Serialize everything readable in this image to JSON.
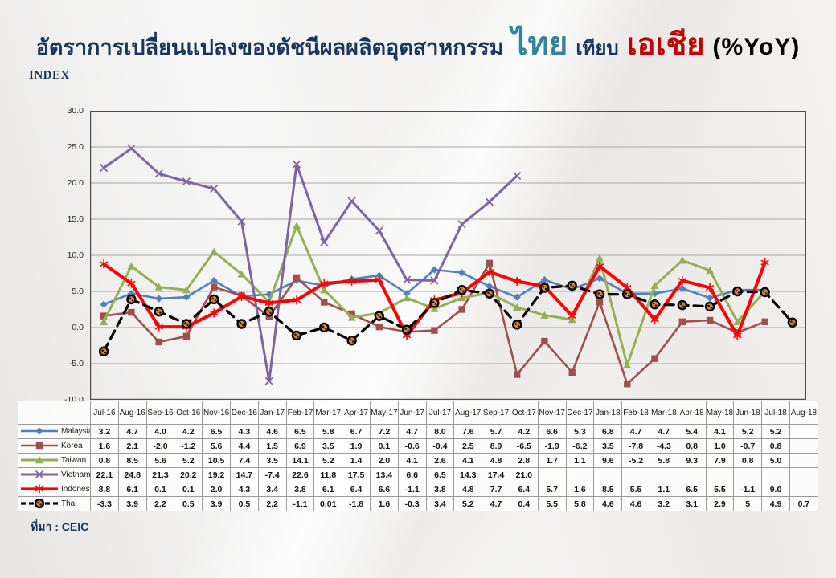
{
  "title": {
    "part1": "อัตราการเปลี่ยนแปลงของดัชนีผลผลิตอุตสาหกรรม",
    "thai_word": "ไทย",
    "part2": "เทียบ",
    "asia_word": "เอเชีย",
    "part3": "(%YoY)"
  },
  "axis_label": "INDEX",
  "source": "ที่มา : CEIC",
  "colors": {
    "title_main": "#17375E",
    "title_thai": "#31859C",
    "title_asia": "#C00000",
    "gridline": "#a6a6a6",
    "plot_border": "#4d4d4d",
    "malaysia": "#4F81BD",
    "korea": "#A0504C",
    "taiwan": "#94B054",
    "vietnam": "#8064A2",
    "indonesia": "#FF0000",
    "thai": "#000000",
    "thai_marker_fill": "#D18439"
  },
  "chart_data": {
    "type": "line",
    "title": "อัตราการเปลี่ยนแปลงของดัชนีผลผลิตอุตสาหกรรม ไทย เทียบ เอเชีย (%YoY)",
    "ylabel": "INDEX",
    "ylim": [
      -10,
      30
    ],
    "ytick_step": 5,
    "yticks": [
      "30.0",
      "25.0",
      "20.0",
      "15.0",
      "10.0",
      "5.0",
      "0.0",
      "-5.0",
      "-10.0"
    ],
    "grid": "horizontal-only",
    "legend_position": "table-left-column",
    "categories": [
      "Jul-16",
      "Aug-16",
      "Sep-16",
      "Oct-16",
      "Nov-16",
      "Dec-16",
      "Jan-17",
      "Feb-17",
      "Mar-17",
      "Apr-17",
      "May-17",
      "Jun-17",
      "Jul-17",
      "Aug-17",
      "Sep-17",
      "Oct-17",
      "Nov-17",
      "Dec-17",
      "Jan-18",
      "Feb-18",
      "Mar-18",
      "Apr-18",
      "May-18",
      "Jun-18",
      "Jul-18",
      "Aug-18"
    ],
    "series": [
      {
        "name": "Malaysia",
        "color": "#4F81BD",
        "marker": "diamond",
        "dash": "",
        "line_width": 2.6,
        "values": [
          "3.2",
          "4.7",
          "4.0",
          "4.2",
          "6.5",
          "4.3",
          "4.6",
          "6.5",
          "5.8",
          "6.7",
          "7.2",
          "4.7",
          "8.0",
          "7.6",
          "5.7",
          "4.2",
          "6.6",
          "5.3",
          "6.8",
          "4.7",
          "4.7",
          "5.4",
          "4.1",
          "5.2",
          "5.2",
          ""
        ]
      },
      {
        "name": "Korea",
        "color": "#A0504C",
        "marker": "square",
        "dash": "",
        "line_width": 2.6,
        "values": [
          "1.6",
          "2.1",
          "-2.0",
          "-1.2",
          "5.6",
          "4.4",
          "1.5",
          "6.9",
          "3.5",
          "1.9",
          "0.1",
          "-0.6",
          "-0.4",
          "2.5",
          "8.9",
          "-6.5",
          "-1.9",
          "-6.2",
          "3.5",
          "-7.8",
          "-4.3",
          "0.8",
          "1.0",
          "-0.7",
          "0.8",
          ""
        ]
      },
      {
        "name": "Taiwan",
        "color": "#94B054",
        "marker": "triangle",
        "dash": "",
        "line_width": 3,
        "values": [
          "0.8",
          "8.5",
          "5.6",
          "5.2",
          "10.5",
          "7.4",
          "3.5",
          "14.1",
          "5.2",
          "1.4",
          "2.0",
          "4.1",
          "2.6",
          "4.1",
          "4.8",
          "2.8",
          "1.7",
          "1.1",
          "9.6",
          "-5.2",
          "5.8",
          "9.3",
          "7.9",
          "0.8",
          "5.0",
          ""
        ]
      },
      {
        "name": "Vietnam",
        "color": "#8064A2",
        "marker": "xcross",
        "dash": "",
        "line_width": 3,
        "values": [
          "22.1",
          "24.8",
          "21.3",
          "20.2",
          "19.2",
          "14.7",
          "-7.4",
          "22.6",
          "11.8",
          "17.5",
          "13.4",
          "6.6",
          "6.5",
          "14.3",
          "17.4",
          "21.0",
          "",
          "",
          "",
          "",
          "",
          "",
          "",
          "",
          "",
          ""
        ]
      },
      {
        "name": "Indonesia",
        "color": "#FF0000",
        "marker": "star",
        "dash": "",
        "line_width": 4,
        "values": [
          "8.8",
          "6.1",
          "0.1",
          "0.1",
          "2.0",
          "4.3",
          "3.4",
          "3.8",
          "6.1",
          "6.4",
          "6.6",
          "-1.1",
          "3.8",
          "4.8",
          "7.7",
          "6.4",
          "5.7",
          "1.6",
          "8.5",
          "5.5",
          "1.1",
          "6.5",
          "5.5",
          "-1.1",
          "9.0",
          ""
        ]
      },
      {
        "name": "Thai",
        "color": "#000000",
        "marker": "spotcircle",
        "dash": "11,7",
        "line_width": 3.2,
        "values": [
          "-3.3",
          "3.9",
          "2.2",
          "0.5",
          "3.9",
          "0.5",
          "2.2",
          "-1.1",
          "0.01",
          "-1.8",
          "1.6",
          "-0.3",
          "3.4",
          "5.2",
          "4.7",
          "0.4",
          "5.5",
          "5.8",
          "4.6",
          "4.6",
          "3.2",
          "3.1",
          "2.9",
          "5",
          "4.9",
          "0.7"
        ]
      }
    ]
  }
}
